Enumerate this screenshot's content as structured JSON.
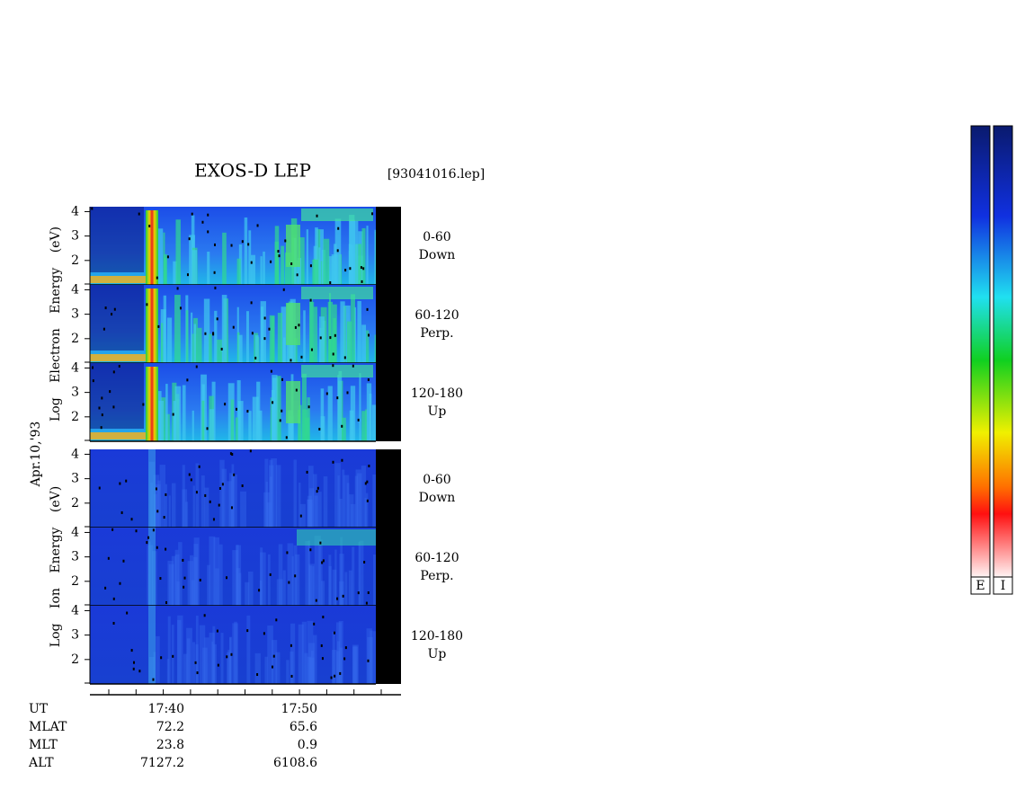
{
  "header": {
    "title": "EXOS-D LEP",
    "file": "[93041016.lep]"
  },
  "date": "Apr.10,'93",
  "groups": [
    {
      "axis_label": "Log Electron Energy (eV)",
      "species": "electron",
      "panels": [
        {
          "pitch": "0-60",
          "direction": "Down",
          "ylim": [
            1,
            4.2
          ],
          "yticks": [
            2,
            3,
            4
          ]
        },
        {
          "pitch": "60-120",
          "direction": "Perp.",
          "ylim": [
            1,
            4.2
          ],
          "yticks": [
            2,
            3,
            4
          ]
        },
        {
          "pitch": "120-180",
          "direction": "Up",
          "ylim": [
            1,
            4.2
          ],
          "yticks": [
            2,
            3,
            4
          ]
        }
      ]
    },
    {
      "axis_label": "Log Ion Energy (eV)",
      "species": "ion",
      "panels": [
        {
          "pitch": "0-60",
          "direction": "Down",
          "ylim": [
            1,
            4.2
          ],
          "yticks": [
            2,
            3,
            4
          ]
        },
        {
          "pitch": "60-120",
          "direction": "Perp.",
          "ylim": [
            1,
            4.2
          ],
          "yticks": [
            2,
            3,
            4
          ]
        },
        {
          "pitch": "120-180",
          "direction": "Up",
          "ylim": [
            1,
            4.2
          ],
          "yticks": [
            2,
            3,
            4
          ]
        }
      ]
    }
  ],
  "orbit": [
    {
      "name": "UT",
      "values": [
        "17:40",
        "17:50"
      ]
    },
    {
      "name": "MLAT",
      "values": [
        "72.2",
        "65.6"
      ]
    },
    {
      "name": "MLT",
      "values": [
        "23.8",
        "0.9"
      ]
    },
    {
      "name": "ALT",
      "values": [
        "7127.2",
        "6108.6"
      ]
    }
  ],
  "colorbars": [
    "E",
    "I"
  ]
}
